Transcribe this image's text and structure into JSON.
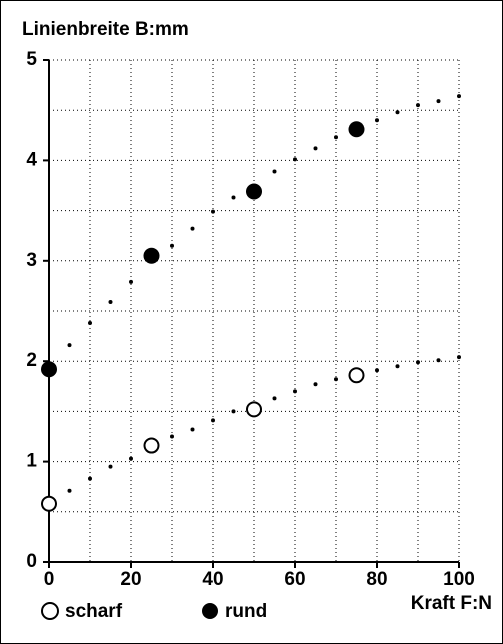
{
  "chart_data": {
    "type": "scatter",
    "y_label": "Linienbreite B:mm",
    "x_label": "Kraft F:N",
    "xlim": [
      0,
      100
    ],
    "ylim": [
      0,
      5
    ],
    "xticks": [
      0,
      20,
      40,
      60,
      80,
      100
    ],
    "yticks": [
      0,
      1,
      2,
      3,
      4,
      5
    ],
    "xminorticks": [
      10,
      30,
      50,
      70,
      90
    ],
    "yminorticks": [
      0.5,
      1.5,
      2.5,
      3.5,
      4.5
    ],
    "grid": true,
    "series": [
      {
        "name": "scharf",
        "marker": "open",
        "color": "#000000",
        "x": [
          0,
          25,
          50,
          75
        ],
        "values": [
          0.58,
          1.16,
          1.52,
          1.86
        ]
      },
      {
        "name": "rund",
        "marker": "filled",
        "color": "#000000",
        "x": [
          0,
          25,
          50,
          75
        ],
        "values": [
          1.92,
          3.05,
          3.69,
          4.31
        ]
      },
      {
        "marker": "dot",
        "color": "#000000",
        "x": [
          5,
          10,
          15,
          20,
          30,
          35,
          40,
          45,
          55,
          60,
          65,
          70,
          80,
          85,
          90,
          95,
          100
        ],
        "values": [
          0.71,
          0.83,
          0.95,
          1.03,
          1.25,
          1.32,
          1.41,
          1.5,
          1.63,
          1.7,
          1.77,
          1.82,
          1.91,
          1.95,
          1.99,
          2.01,
          2.04
        ]
      },
      {
        "marker": "dot",
        "color": "#000000",
        "x": [
          5,
          10,
          15,
          20,
          30,
          35,
          40,
          45,
          55,
          60,
          65,
          70,
          80,
          85,
          90,
          95,
          100
        ],
        "values": [
          2.16,
          2.38,
          2.59,
          2.79,
          3.15,
          3.32,
          3.49,
          3.63,
          3.89,
          4.01,
          4.12,
          4.23,
          4.4,
          4.48,
          4.55,
          4.59,
          4.64
        ]
      }
    ]
  }
}
